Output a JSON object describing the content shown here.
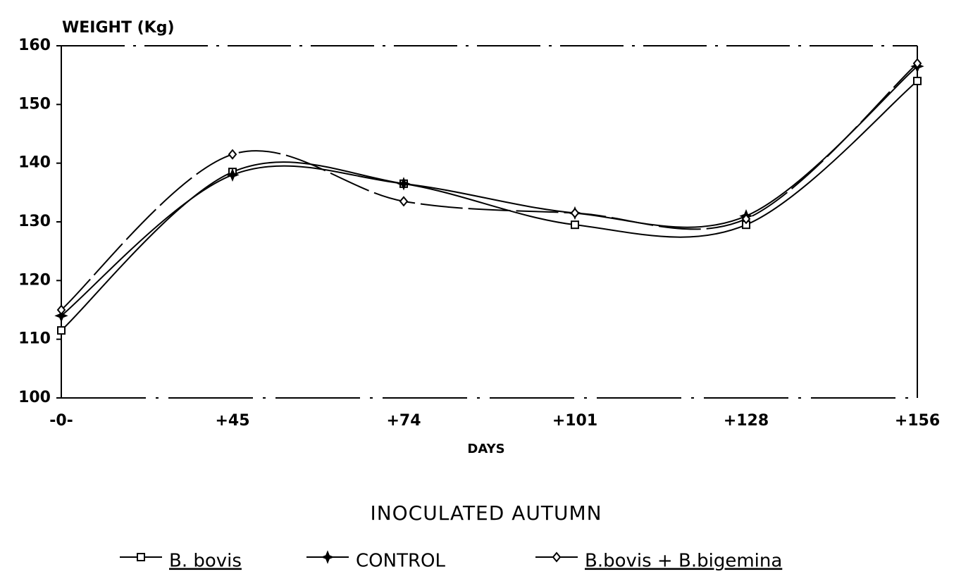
{
  "chart_data": {
    "type": "line",
    "title": "INOCULATED AUTUMN",
    "y_label": "WEIGHT (Kg)",
    "x_label": "DAYS",
    "categories": [
      "-0-",
      "+45",
      "+74",
      "+101",
      "+128",
      "+156"
    ],
    "series": [
      {
        "name": "B. bovis",
        "color": "#000000",
        "marker": "square",
        "values": [
          111.5,
          138.5,
          136.5,
          129.5,
          129.5,
          154
        ]
      },
      {
        "name": "CONTROL",
        "color": "#000000",
        "marker": "star",
        "values": [
          114,
          138,
          136.5,
          131.5,
          131,
          156.5
        ]
      },
      {
        "name": "B.bovis + B.bigemina",
        "color": "#000000",
        "marker": "diamond",
        "values": [
          115,
          141.5,
          133.5,
          131.5,
          130.5,
          157
        ]
      }
    ],
    "ylim": [
      100,
      160
    ],
    "yticks": [
      100,
      110,
      120,
      130,
      140,
      150,
      160
    ]
  }
}
